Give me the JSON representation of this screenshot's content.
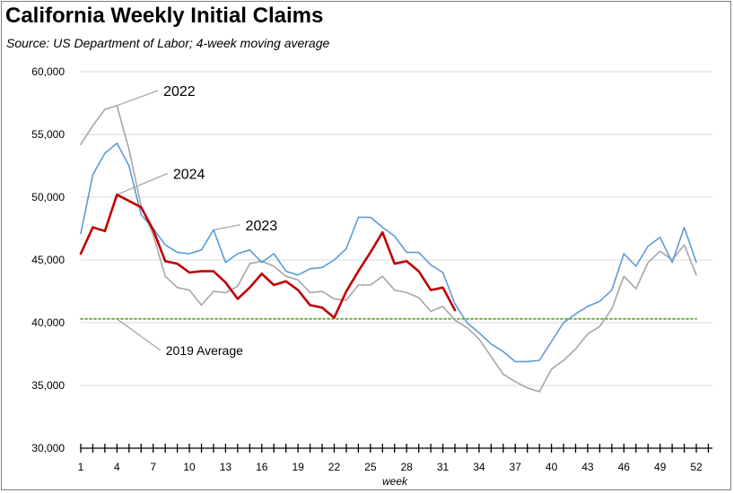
{
  "header": {
    "title": "California Weekly Initial Claims",
    "subtitle": "Source:  US Department of Labor; 4-week moving average"
  },
  "chart_data": {
    "type": "line",
    "title": "California Weekly Initial Claims",
    "subtitle": "Source:  US Department of Labor; 4-week moving average",
    "xlabel": "week",
    "ylabel": "",
    "xlim": [
      1,
      52
    ],
    "ylim": [
      30000,
      60000
    ],
    "x_ticks": [
      "1",
      "4",
      "7",
      "10",
      "13",
      "16",
      "19",
      "22",
      "25",
      "28",
      "31",
      "34",
      "37",
      "40",
      "43",
      "46",
      "49",
      "52"
    ],
    "y_ticks": [
      "30,000",
      "35,000",
      "40,000",
      "45,000",
      "50,000",
      "55,000",
      "60,000"
    ],
    "grid": "horizontal",
    "legend": "none",
    "series": [
      {
        "name": "2022",
        "color": "#a6a6a6",
        "x": [
          1,
          2,
          3,
          4,
          5,
          6,
          7,
          8,
          9,
          10,
          11,
          12,
          13,
          14,
          15,
          16,
          17,
          18,
          19,
          20,
          21,
          22,
          23,
          24,
          25,
          26,
          27,
          28,
          29,
          30,
          31,
          32,
          33,
          34,
          35,
          36,
          37,
          38,
          39,
          40,
          41,
          42,
          43,
          44,
          45,
          46,
          47,
          48,
          49,
          50,
          51,
          52
        ],
        "values": [
          54200,
          55700,
          57000,
          57300,
          53800,
          49300,
          47000,
          43700,
          42800,
          42600,
          41400,
          42500,
          42400,
          42900,
          44700,
          44900,
          44500,
          43700,
          43400,
          42400,
          42500,
          41900,
          41800,
          43000,
          43000,
          43700,
          42600,
          42400,
          42000,
          40900,
          41300,
          40200,
          39600,
          38700,
          37300,
          35900,
          35300,
          34800,
          34500,
          36300,
          37000,
          37900,
          39100,
          39700,
          41100,
          43700,
          42700,
          44800,
          45700,
          45000,
          46200,
          43800
        ]
      },
      {
        "name": "2023",
        "color": "#5b9bd5",
        "x": [
          1,
          2,
          3,
          4,
          5,
          6,
          7,
          8,
          9,
          10,
          11,
          12,
          13,
          14,
          15,
          16,
          17,
          18,
          19,
          20,
          21,
          22,
          23,
          24,
          25,
          26,
          27,
          28,
          29,
          30,
          31,
          32,
          33,
          34,
          35,
          36,
          37,
          38,
          39,
          40,
          41,
          42,
          43,
          44,
          45,
          46,
          47,
          48,
          49,
          50,
          51,
          52
        ],
        "values": [
          47100,
          51800,
          53500,
          54300,
          52500,
          48600,
          47500,
          46200,
          45600,
          45500,
          45800,
          47400,
          44800,
          45500,
          45800,
          44800,
          45500,
          44100,
          43800,
          44300,
          44400,
          45000,
          45900,
          48400,
          48400,
          47600,
          46900,
          45600,
          45600,
          44600,
          44000,
          41500,
          40000,
          39200,
          38300,
          37700,
          36900,
          36900,
          37000,
          38500,
          40000,
          40700,
          41300,
          41700,
          42600,
          45500,
          44500,
          46100,
          46800,
          44800,
          47600,
          44800
        ]
      },
      {
        "name": "2024",
        "color": "#c00000",
        "x": [
          1,
          2,
          3,
          4,
          5,
          6,
          7,
          8,
          9,
          10,
          11,
          12,
          13,
          14,
          15,
          16,
          17,
          18,
          19,
          20,
          21,
          22,
          23,
          24,
          25,
          26,
          27,
          28,
          29,
          30,
          31,
          32
        ],
        "values": [
          45500,
          47600,
          47300,
          50200,
          49700,
          49200,
          47400,
          44900,
          44700,
          44000,
          44100,
          44100,
          43200,
          41900,
          42800,
          43900,
          43000,
          43300,
          42600,
          41400,
          41200,
          40400,
          42500,
          44100,
          45600,
          47200,
          44700,
          44900,
          44100,
          42600,
          42800,
          41000
        ]
      },
      {
        "name": "2019 Average",
        "color": "#70ad47",
        "x": [
          1,
          52
        ],
        "values": [
          40300,
          40300
        ]
      }
    ],
    "annotations": [
      {
        "text": "2022",
        "series": "2022",
        "anchor_x": 4,
        "anchor_y": 57300,
        "label_x": 7.4,
        "label_y": 58500
      },
      {
        "text": "2024",
        "series": "2024",
        "anchor_x": 4,
        "anchor_y": 50200,
        "label_x": 8.2,
        "label_y": 51900
      },
      {
        "text": "2023",
        "series": "2023",
        "anchor_x": 12,
        "anchor_y": 47400,
        "label_x": 14.2,
        "label_y": 47800
      },
      {
        "text": "2019 Average",
        "series": "2019 Average",
        "anchor_x": 4,
        "anchor_y": 40300,
        "label_x": 7.6,
        "label_y": 37800
      }
    ]
  }
}
